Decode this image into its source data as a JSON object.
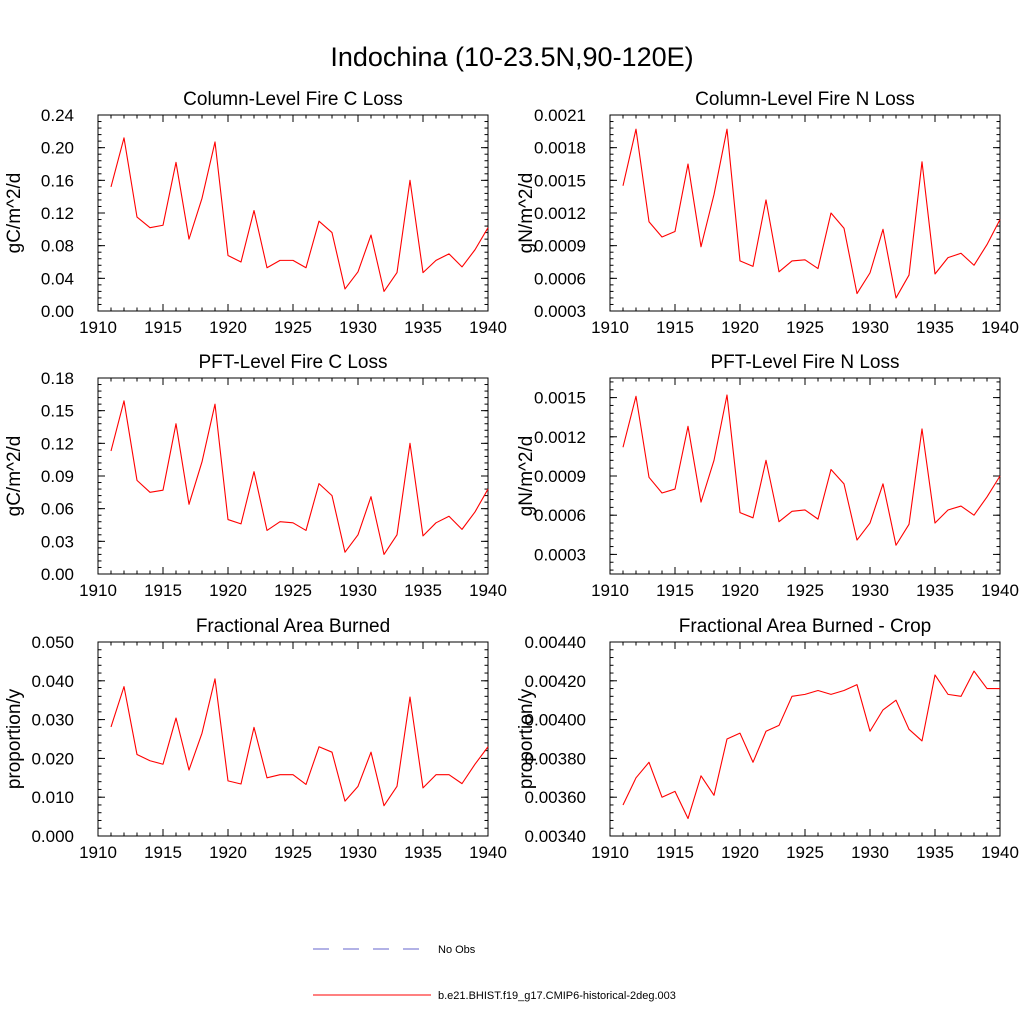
{
  "figure": {
    "title": "Indochina (10-23.5N,90-120E)"
  },
  "legend": {
    "items": [
      {
        "label": "No Obs",
        "color": "#6666cc",
        "style": "dashed"
      },
      {
        "label": "b.e21.BHIST.f19_g17.CMIP6-historical-2deg.003",
        "color": "#ff0000",
        "style": "solid"
      }
    ]
  },
  "chart_data": [
    {
      "type": "line",
      "title": "Column-Level Fire C Loss",
      "ylabel": "gC/m^2/d",
      "xlim": [
        1910,
        1940
      ],
      "ylim": [
        0.0,
        0.24
      ],
      "xticks": [
        1910,
        1915,
        1920,
        1925,
        1930,
        1935,
        1940
      ],
      "yticks": [
        0.0,
        0.04,
        0.08,
        0.12,
        0.16,
        0.2,
        0.24
      ],
      "ytick_labels": [
        "0.00",
        "0.04",
        "0.08",
        "0.12",
        "0.16",
        "0.20",
        "0.24"
      ],
      "x": [
        1911,
        1912,
        1913,
        1914,
        1915,
        1916,
        1917,
        1918,
        1919,
        1920,
        1921,
        1922,
        1923,
        1924,
        1925,
        1926,
        1927,
        1928,
        1929,
        1930,
        1931,
        1932,
        1933,
        1934,
        1935,
        1936,
        1937,
        1938,
        1939,
        1940
      ],
      "series": [
        {
          "color": "#ff0000",
          "values": [
            0.152,
            0.212,
            0.115,
            0.102,
            0.105,
            0.182,
            0.088,
            0.138,
            0.207,
            0.068,
            0.06,
            0.123,
            0.053,
            0.062,
            0.062,
            0.053,
            0.11,
            0.096,
            0.027,
            0.048,
            0.093,
            0.024,
            0.047,
            0.16,
            0.047,
            0.062,
            0.07,
            0.054,
            0.075,
            0.102
          ]
        }
      ]
    },
    {
      "type": "line",
      "title": "Column-Level Fire N Loss",
      "ylabel": "gN/m^2/d",
      "xlim": [
        1910,
        1940
      ],
      "ylim": [
        0.0003,
        0.0021
      ],
      "xticks": [
        1910,
        1915,
        1920,
        1925,
        1930,
        1935,
        1940
      ],
      "yticks": [
        0.0003,
        0.0006,
        0.0009,
        0.0012,
        0.0015,
        0.0018,
        0.0021
      ],
      "ytick_labels": [
        "0.0003",
        "0.0006",
        "0.0009",
        "0.0012",
        "0.0015",
        "0.0018",
        "0.0021"
      ],
      "x": [
        1911,
        1912,
        1913,
        1914,
        1915,
        1916,
        1917,
        1918,
        1919,
        1920,
        1921,
        1922,
        1923,
        1924,
        1925,
        1926,
        1927,
        1928,
        1929,
        1930,
        1931,
        1932,
        1933,
        1934,
        1935,
        1936,
        1937,
        1938,
        1939,
        1940
      ],
      "series": [
        {
          "color": "#ff0000",
          "values": [
            0.00145,
            0.00197,
            0.00112,
            0.00098,
            0.00103,
            0.00165,
            0.00089,
            0.00137,
            0.00197,
            0.00076,
            0.00071,
            0.00132,
            0.00066,
            0.00076,
            0.00077,
            0.00069,
            0.0012,
            0.00106,
            0.00046,
            0.00065,
            0.00105,
            0.00042,
            0.00063,
            0.00167,
            0.00064,
            0.00079,
            0.00083,
            0.00072,
            0.00091,
            0.00114
          ]
        }
      ]
    },
    {
      "type": "line",
      "title": "PFT-Level Fire C Loss",
      "ylabel": "gC/m^2/d",
      "xlim": [
        1910,
        1940
      ],
      "ylim": [
        0.0,
        0.18
      ],
      "xticks": [
        1910,
        1915,
        1920,
        1925,
        1930,
        1935,
        1940
      ],
      "yticks": [
        0.0,
        0.03,
        0.06,
        0.09,
        0.12,
        0.15,
        0.18
      ],
      "ytick_labels": [
        "0.00",
        "0.03",
        "0.06",
        "0.09",
        "0.12",
        "0.15",
        "0.18"
      ],
      "x": [
        1911,
        1912,
        1913,
        1914,
        1915,
        1916,
        1917,
        1918,
        1919,
        1920,
        1921,
        1922,
        1923,
        1924,
        1925,
        1926,
        1927,
        1928,
        1929,
        1930,
        1931,
        1932,
        1933,
        1934,
        1935,
        1936,
        1937,
        1938,
        1939,
        1940
      ],
      "series": [
        {
          "color": "#ff0000",
          "values": [
            0.113,
            0.159,
            0.086,
            0.075,
            0.077,
            0.138,
            0.064,
            0.103,
            0.156,
            0.05,
            0.046,
            0.094,
            0.04,
            0.048,
            0.047,
            0.04,
            0.083,
            0.072,
            0.02,
            0.036,
            0.071,
            0.018,
            0.036,
            0.12,
            0.035,
            0.047,
            0.053,
            0.041,
            0.057,
            0.078
          ]
        }
      ]
    },
    {
      "type": "line",
      "title": "PFT-Level Fire N Loss",
      "ylabel": "gN/m^2/d",
      "xlim": [
        1910,
        1940
      ],
      "ylim": [
        0.00015,
        0.00165
      ],
      "xticks": [
        1910,
        1915,
        1920,
        1925,
        1930,
        1935,
        1940
      ],
      "yticks": [
        0.0003,
        0.0006,
        0.0009,
        0.0012,
        0.0015
      ],
      "ytick_labels": [
        "0.0003",
        "0.0006",
        "0.0009",
        "0.0012",
        "0.0015"
      ],
      "x": [
        1911,
        1912,
        1913,
        1914,
        1915,
        1916,
        1917,
        1918,
        1919,
        1920,
        1921,
        1922,
        1923,
        1924,
        1925,
        1926,
        1927,
        1928,
        1929,
        1930,
        1931,
        1932,
        1933,
        1934,
        1935,
        1936,
        1937,
        1938,
        1939,
        1940
      ],
      "series": [
        {
          "color": "#ff0000",
          "values": [
            0.00112,
            0.00151,
            0.00089,
            0.00077,
            0.0008,
            0.00128,
            0.0007,
            0.00102,
            0.00152,
            0.00062,
            0.00058,
            0.00102,
            0.00055,
            0.00063,
            0.00064,
            0.00057,
            0.00095,
            0.00084,
            0.00041,
            0.00054,
            0.00084,
            0.00037,
            0.00053,
            0.00126,
            0.00054,
            0.00064,
            0.00067,
            0.0006,
            0.00074,
            0.0009
          ]
        }
      ]
    },
    {
      "type": "line",
      "title": "Fractional Area Burned",
      "ylabel": "proportion/y",
      "xlim": [
        1910,
        1940
      ],
      "ylim": [
        0.0,
        0.05
      ],
      "xticks": [
        1910,
        1915,
        1920,
        1925,
        1930,
        1935,
        1940
      ],
      "yticks": [
        0.0,
        0.01,
        0.02,
        0.03,
        0.04,
        0.05
      ],
      "ytick_labels": [
        "0.000",
        "0.010",
        "0.020",
        "0.030",
        "0.040",
        "0.050"
      ],
      "x": [
        1911,
        1912,
        1913,
        1914,
        1915,
        1916,
        1917,
        1918,
        1919,
        1920,
        1921,
        1922,
        1923,
        1924,
        1925,
        1926,
        1927,
        1928,
        1929,
        1930,
        1931,
        1932,
        1933,
        1934,
        1935,
        1936,
        1937,
        1938,
        1939,
        1940
      ],
      "series": [
        {
          "color": "#ff0000",
          "values": [
            0.0281,
            0.0385,
            0.021,
            0.0194,
            0.0185,
            0.0304,
            0.017,
            0.0265,
            0.0405,
            0.0142,
            0.0134,
            0.028,
            0.015,
            0.0158,
            0.0158,
            0.0133,
            0.023,
            0.0216,
            0.009,
            0.0128,
            0.0216,
            0.0078,
            0.0128,
            0.0358,
            0.0124,
            0.0158,
            0.0158,
            0.0135,
            0.0185,
            0.023
          ]
        }
      ]
    },
    {
      "type": "line",
      "title": "Fractional Area Burned - Crop",
      "ylabel": "proportion/y",
      "xlim": [
        1910,
        1940
      ],
      "ylim": [
        0.0034,
        0.0044
      ],
      "xticks": [
        1910,
        1915,
        1920,
        1925,
        1930,
        1935,
        1940
      ],
      "yticks": [
        0.0034,
        0.0036,
        0.0038,
        0.004,
        0.0042,
        0.0044
      ],
      "ytick_labels": [
        "0.00340",
        "0.00360",
        "0.00380",
        "0.00400",
        "0.00420",
        "0.00440"
      ],
      "x": [
        1911,
        1912,
        1913,
        1914,
        1915,
        1916,
        1917,
        1918,
        1919,
        1920,
        1921,
        1922,
        1923,
        1924,
        1925,
        1926,
        1927,
        1928,
        1929,
        1930,
        1931,
        1932,
        1933,
        1934,
        1935,
        1936,
        1937,
        1938,
        1939,
        1940
      ],
      "series": [
        {
          "color": "#ff0000",
          "values": [
            0.00356,
            0.0037,
            0.00378,
            0.0036,
            0.00363,
            0.00349,
            0.00371,
            0.00361,
            0.0039,
            0.00393,
            0.00378,
            0.00394,
            0.00397,
            0.00412,
            0.00413,
            0.00415,
            0.00413,
            0.00415,
            0.00418,
            0.00394,
            0.00405,
            0.0041,
            0.00395,
            0.00389,
            0.00423,
            0.00413,
            0.00412,
            0.00425,
            0.00416,
            0.00416
          ]
        }
      ]
    }
  ]
}
